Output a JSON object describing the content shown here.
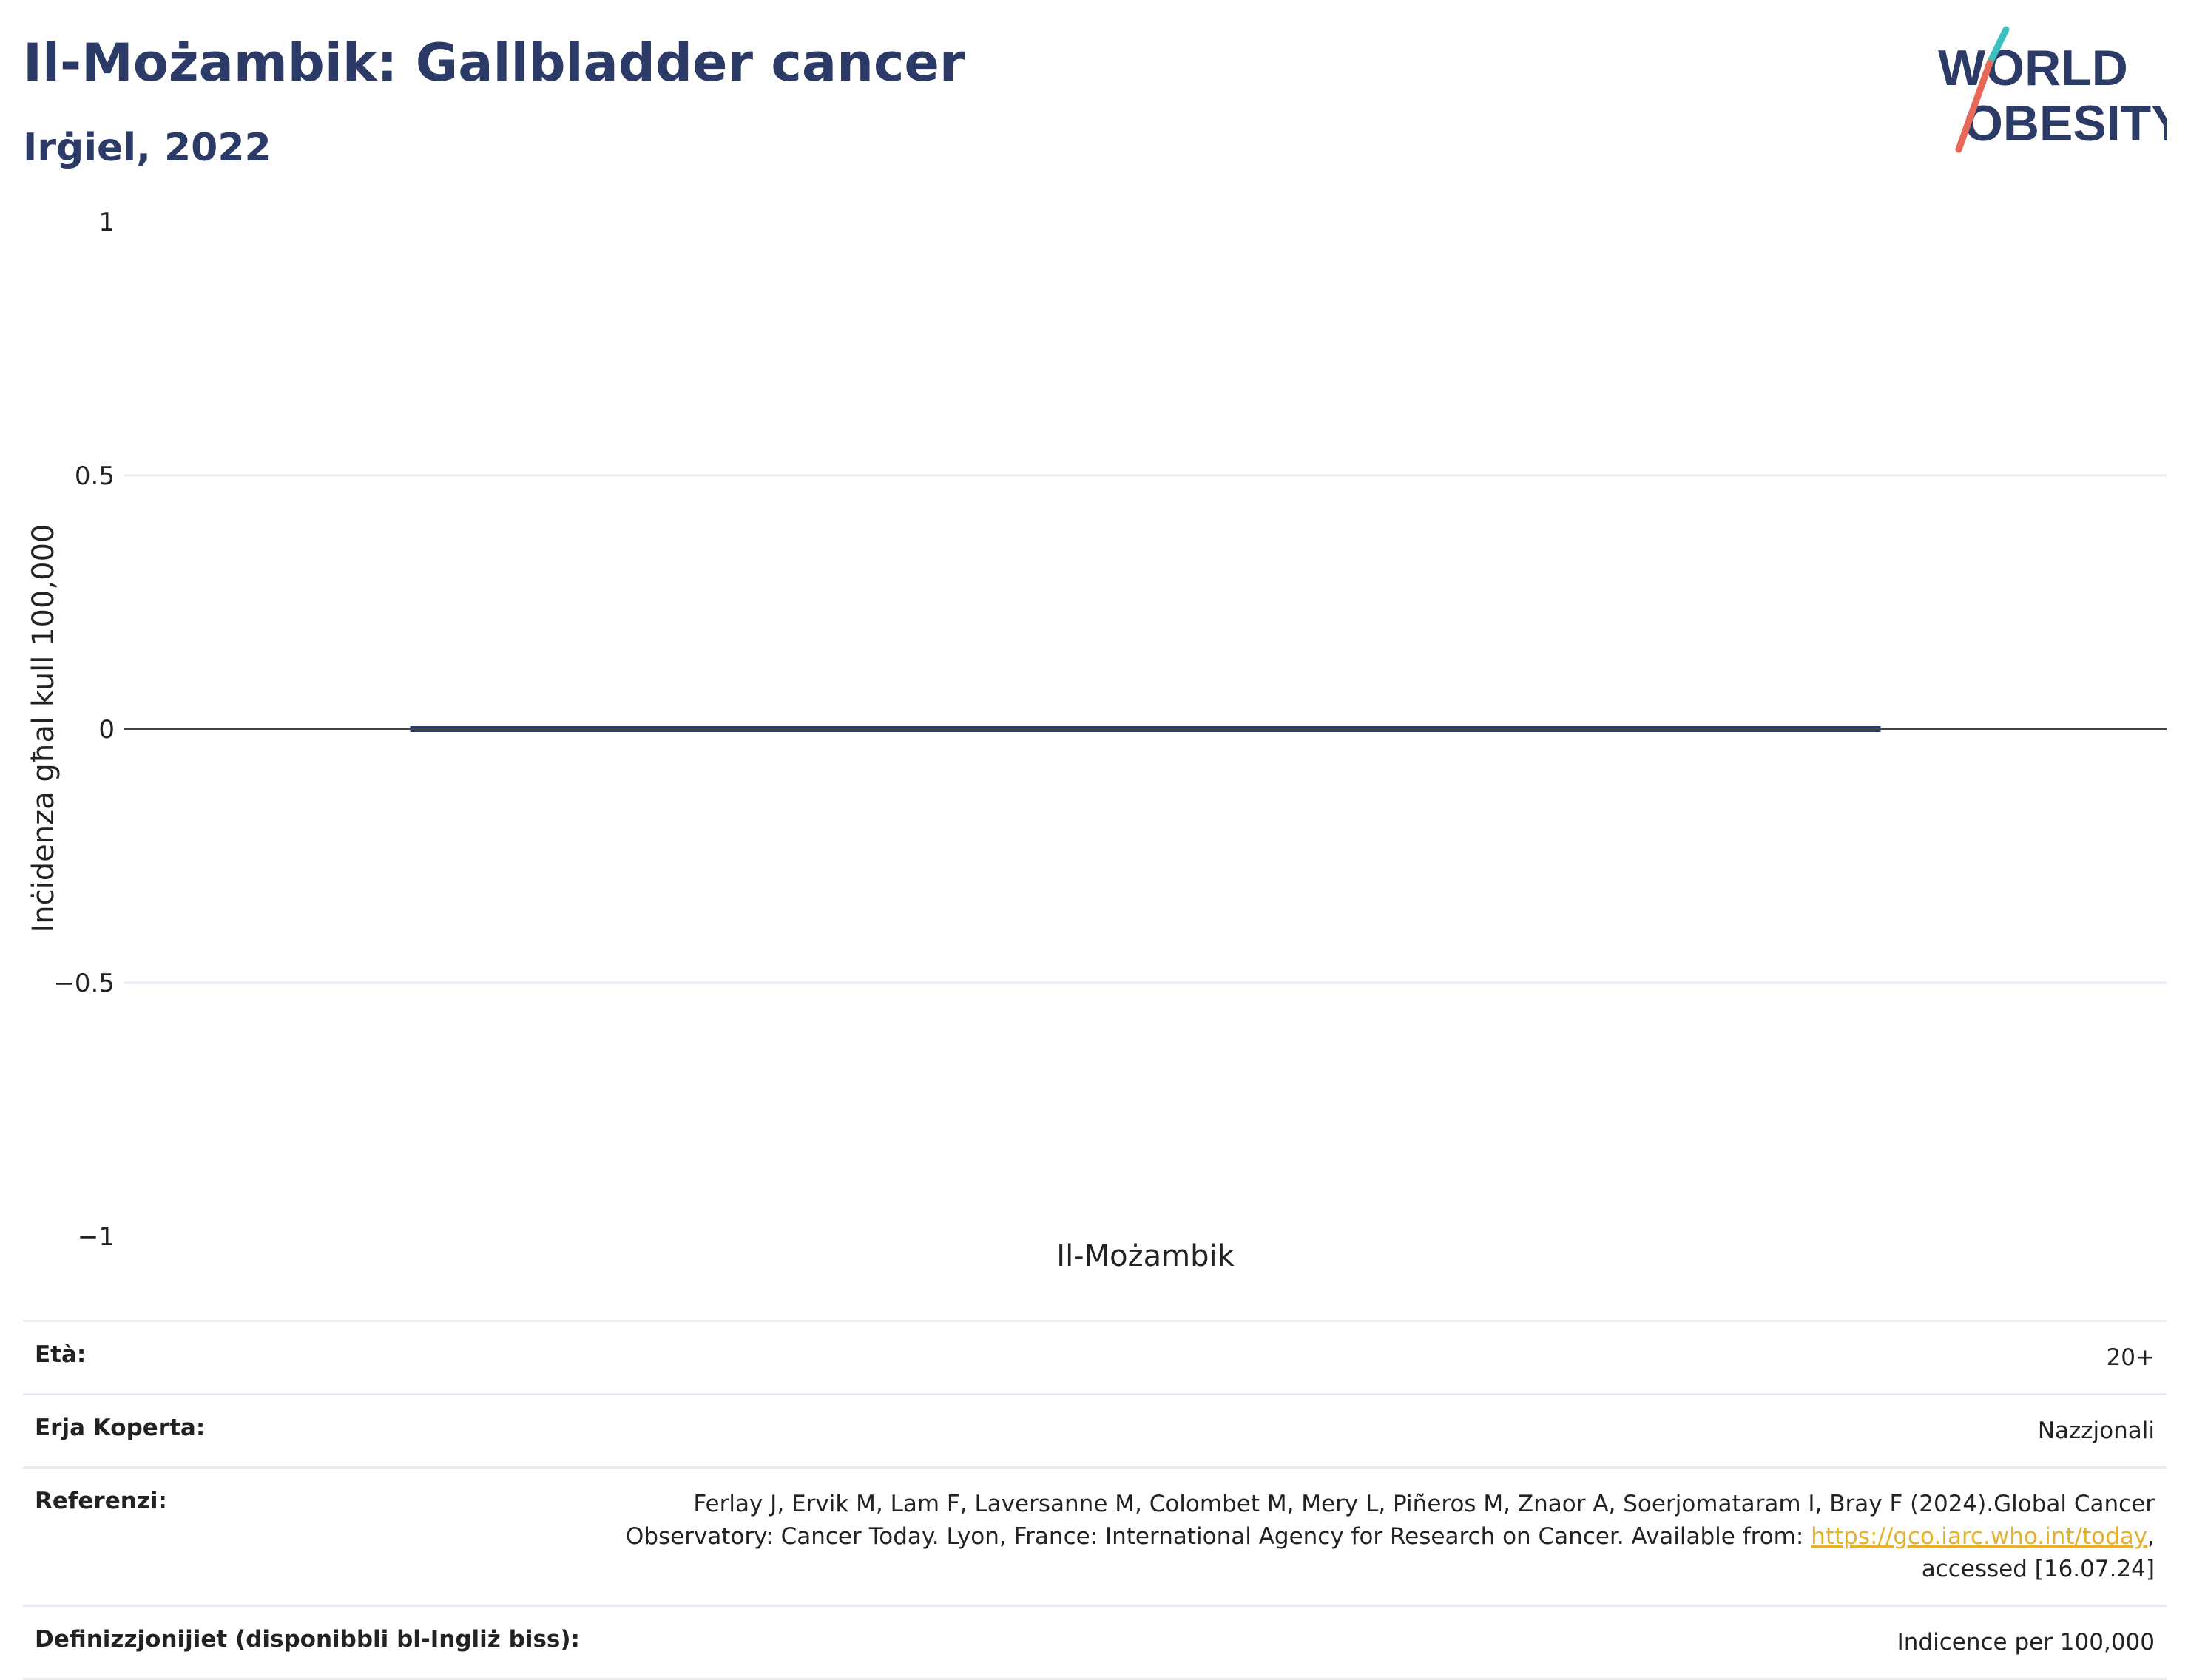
{
  "header": {
    "title": "Il-Możambik: Gallbladder cancer",
    "subtitle": "Irġiel, 2022"
  },
  "logo": {
    "line1": "WORLD",
    "line2": "OBESITY",
    "colors": {
      "text": "#2b3a67",
      "slash_top": "#3bbfc0",
      "slash_bottom": "#e8685a"
    }
  },
  "chart_data": {
    "type": "bar",
    "categories": [
      "Il-Możambik"
    ],
    "values": [
      0
    ],
    "title": "Il-Możambik: Gallbladder cancer",
    "subtitle": "Irġiel, 2022",
    "xlabel": "",
    "ylabel": "Inċidenza għal kull 100,000",
    "ylim": [
      -1,
      1
    ],
    "yticks": [
      1,
      0.5,
      0,
      -0.5,
      -1
    ],
    "ytick_labels": [
      "1",
      "0.5",
      "0",
      "−0.5",
      "−1"
    ],
    "grid": true,
    "bar_color": "#2b3a67"
  },
  "info_table": {
    "rows": [
      {
        "key": "Età:",
        "value": "20+"
      },
      {
        "key": "Erja Koperta:",
        "value": "Nazzjonali"
      },
      {
        "key": "Referenzi:",
        "value_line1": "Ferlay J, Ervik M, Lam F, Laversanne M, Colombet M, Mery L, Piñeros M, Znaor A, Soerjomataram I, Bray F (2024).Global Cancer",
        "value_line2_pre": "Observatory: Cancer Today. Lyon, France: International Agency for Research on Cancer. Available from: ",
        "link": "https://gco.iarc.who.int/today",
        "value_line2_post": ",",
        "value_line3": "accessed [16.07.24]"
      },
      {
        "key": "Definizzjonijiet (disponibbli bl-Ingliż biss):",
        "value": "Indicence per 100,000"
      }
    ]
  }
}
